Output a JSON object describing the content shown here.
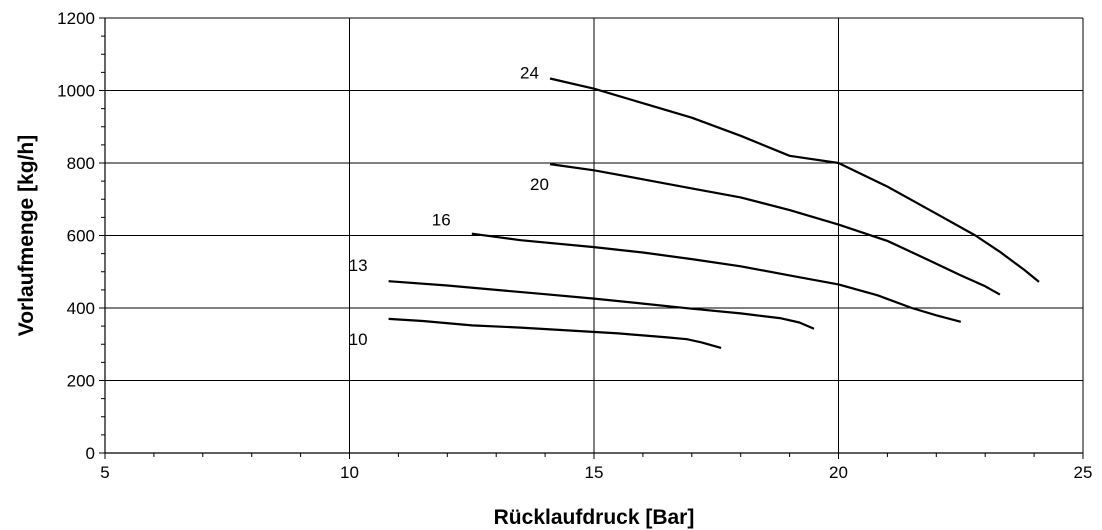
{
  "chart_data": {
    "type": "line",
    "xlabel": "Rücklaufdruck [Bar]",
    "ylabel": "Vorlaufmenge [kg/h]",
    "xlim": [
      5,
      25
    ],
    "ylim": [
      0,
      1200
    ],
    "x_ticks": [
      "5",
      "10",
      "15",
      "20",
      "25"
    ],
    "y_ticks": [
      "0",
      "200",
      "400",
      "600",
      "800",
      "1000",
      "1200"
    ],
    "grid": true,
    "series": [
      {
        "name": "24",
        "points": [
          [
            14.1,
            1033
          ],
          [
            15,
            1005
          ],
          [
            16,
            965
          ],
          [
            17,
            925
          ],
          [
            18,
            875
          ],
          [
            19,
            820
          ],
          [
            20,
            800
          ],
          [
            21,
            735
          ],
          [
            22,
            660
          ],
          [
            22.8,
            600
          ],
          [
            23.3,
            555
          ],
          [
            23.8,
            505
          ],
          [
            24.1,
            472
          ]
        ]
      },
      {
        "name": "20",
        "points": [
          [
            14.1,
            797
          ],
          [
            15,
            780
          ],
          [
            16,
            755
          ],
          [
            17,
            730
          ],
          [
            18,
            705
          ],
          [
            19,
            670
          ],
          [
            20,
            630
          ],
          [
            21,
            585
          ],
          [
            21.8,
            535
          ],
          [
            22.5,
            490
          ],
          [
            23,
            460
          ],
          [
            23.3,
            437
          ]
        ]
      },
      {
        "name": "16",
        "points": [
          [
            12.5,
            605
          ],
          [
            13.5,
            587
          ],
          [
            15,
            568
          ],
          [
            16,
            553
          ],
          [
            17,
            535
          ],
          [
            18,
            515
          ],
          [
            19,
            490
          ],
          [
            20,
            465
          ],
          [
            20.8,
            435
          ],
          [
            21.5,
            400
          ],
          [
            22,
            380
          ],
          [
            22.5,
            362
          ]
        ]
      },
      {
        "name": "13",
        "points": [
          [
            10.8,
            474
          ],
          [
            12,
            462
          ],
          [
            13,
            450
          ],
          [
            14,
            438
          ],
          [
            15,
            426
          ],
          [
            16,
            412
          ],
          [
            17,
            398
          ],
          [
            18,
            385
          ],
          [
            18.8,
            372
          ],
          [
            19.2,
            360
          ],
          [
            19.5,
            343
          ]
        ]
      },
      {
        "name": "10",
        "points": [
          [
            10.8,
            370
          ],
          [
            11.5,
            364
          ],
          [
            12.5,
            352
          ],
          [
            13.5,
            346
          ],
          [
            14.5,
            338
          ],
          [
            15.5,
            330
          ],
          [
            16.5,
            319
          ],
          [
            16.9,
            314
          ],
          [
            17.2,
            305
          ],
          [
            17.6,
            290
          ]
        ]
      }
    ]
  }
}
